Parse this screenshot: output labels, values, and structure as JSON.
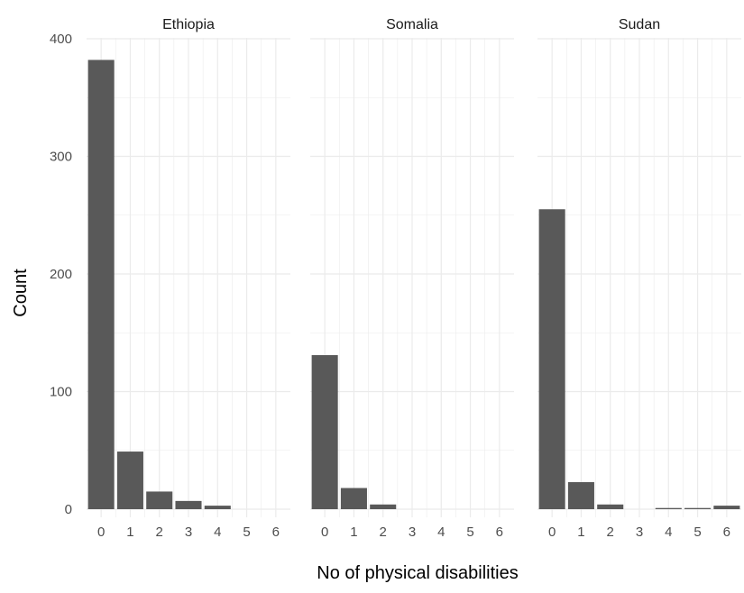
{
  "chart_data": {
    "type": "bar",
    "xlabel": "No of physical disabilities",
    "ylabel": "Count",
    "ylim": [
      0,
      400
    ],
    "y_ticks": [
      0,
      100,
      200,
      300,
      400
    ],
    "x_min": -0.5,
    "x_max": 6.5,
    "categories": [
      "0",
      "1",
      "2",
      "3",
      "4",
      "5",
      "6"
    ],
    "grid": true,
    "colors": {
      "bar": "#595959",
      "grid": "#ebebeb"
    },
    "facets": [
      {
        "title": "Ethiopia",
        "values": [
          382,
          49,
          15,
          7,
          3,
          0,
          0
        ]
      },
      {
        "title": "Somalia",
        "values": [
          131,
          18,
          4,
          0,
          0,
          0,
          0
        ]
      },
      {
        "title": "Sudan",
        "values": [
          255,
          23,
          4,
          0,
          1,
          1,
          3
        ]
      }
    ]
  }
}
